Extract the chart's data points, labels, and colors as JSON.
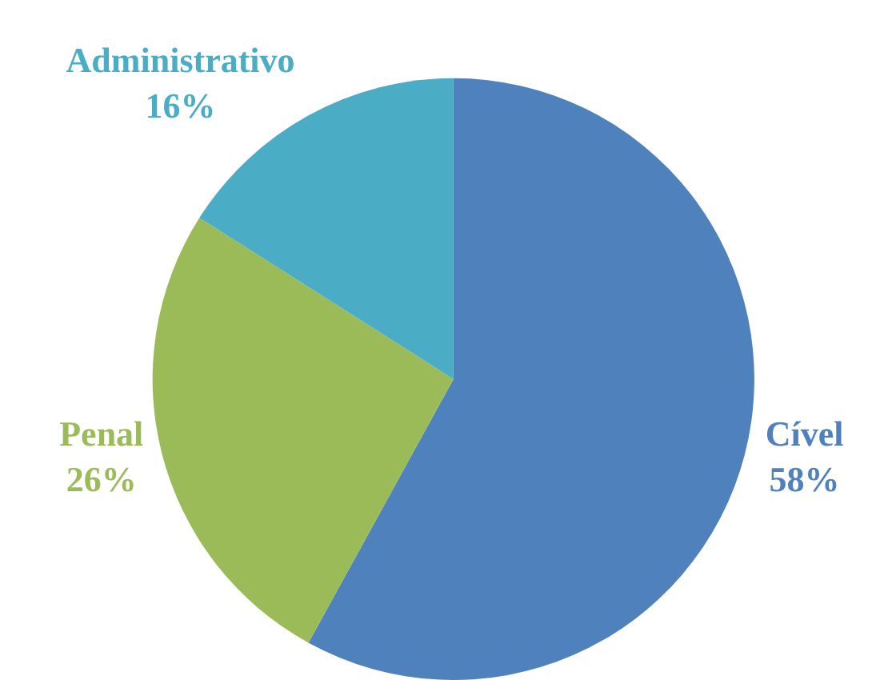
{
  "chart_data": {
    "type": "pie",
    "categories": [
      "Cível",
      "Penal",
      "Administrativo"
    ],
    "values": [
      58,
      26,
      16
    ],
    "value_labels": [
      "58%",
      "26%",
      "16%"
    ],
    "colors": [
      "#4f81bd",
      "#9bbb59",
      "#4bacc6"
    ],
    "legend": false
  }
}
